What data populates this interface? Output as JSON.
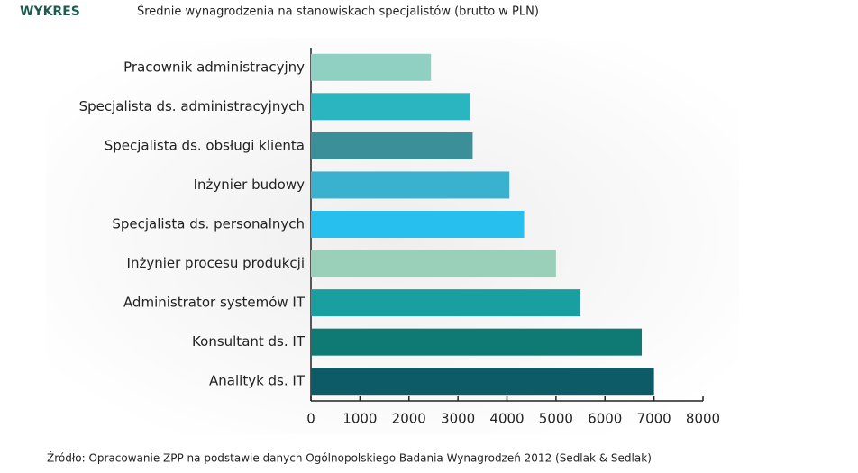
{
  "chart_data": {
    "type": "barh",
    "label": "WYKRES",
    "title": "Średnie wynagrodzenia na stanowiskach specjalistów (brutto w PLN)",
    "source": "Źródło: Opracowanie ZPP na podstawie danych Ogólnopolskiego Badania Wynagrodzeń 2012 (Sedlak & Sedlak)",
    "categories": [
      "Pracownik administracyjny",
      "Specjalista ds. administracyjnych",
      "Specjalista ds. obsługi klienta",
      "Inżynier budowy",
      "Specjalista ds. personalnych",
      "Inżynier procesu produkcji",
      "Administrator systemów IT",
      "Konsultant ds. IT",
      "Analityk ds. IT"
    ],
    "values": [
      2450,
      3250,
      3300,
      4050,
      4350,
      5000,
      5500,
      6750,
      7000
    ],
    "colors": [
      "#8fd0c3",
      "#2bb5c1",
      "#3b8f99",
      "#3ab2cf",
      "#27c0ee",
      "#9acfb9",
      "#1a9fa0",
      "#0f7a73",
      "#0c5b67"
    ],
    "xlim": [
      0,
      8000
    ],
    "xticks": [
      0,
      1000,
      2000,
      3000,
      4000,
      5000,
      6000,
      7000,
      8000
    ]
  }
}
